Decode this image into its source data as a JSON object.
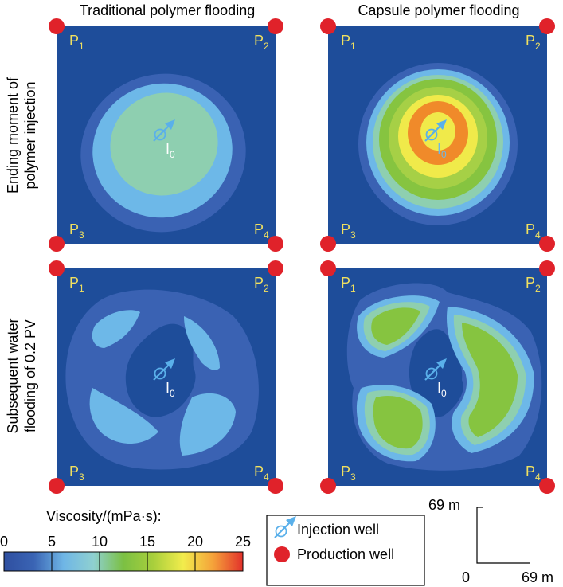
{
  "columns": [
    "Traditional polymer flooding",
    "Capsule polymer flooding"
  ],
  "rows": [
    "Ending moment of polymer injection",
    "Subsequent water flooding of 0.2 PV"
  ],
  "wells": {
    "production": [
      {
        "name": "P",
        "sub": "1"
      },
      {
        "name": "P",
        "sub": "2"
      },
      {
        "name": "P",
        "sub": "3"
      },
      {
        "name": "P",
        "sub": "4"
      }
    ],
    "injection": {
      "name": "I",
      "sub": "0"
    }
  },
  "colorbar": {
    "title": "Viscosity/(mPa·s):",
    "ticks": [
      "0",
      "5",
      "10",
      "15",
      "20",
      "25"
    ],
    "stops": [
      "#2f4fa0",
      "#3a64b4",
      "#6fb6e6",
      "#8fd0d0",
      "#7bc043",
      "#a8cf3c",
      "#f2ec4c",
      "#f5a23a",
      "#e2312b"
    ]
  },
  "legend": {
    "injection_label": "Injection well",
    "production_label": "Production well"
  },
  "scale": {
    "vertical_label": "69 m",
    "horizontal_label": "69 m",
    "origin_label": "0"
  },
  "colors": {
    "background": "#1e4d9a",
    "low_band": "#3a62b3",
    "light_blue": "#6db8e8",
    "pale_green": "#8ecfb0",
    "green": "#86c440",
    "light_green": "#a6d046",
    "yellow": "#f0ea4a",
    "orange": "#f08a2a",
    "production_well": "#e0222a",
    "injection_well": "#5ab0ea",
    "well_label": "#f0e060"
  }
}
